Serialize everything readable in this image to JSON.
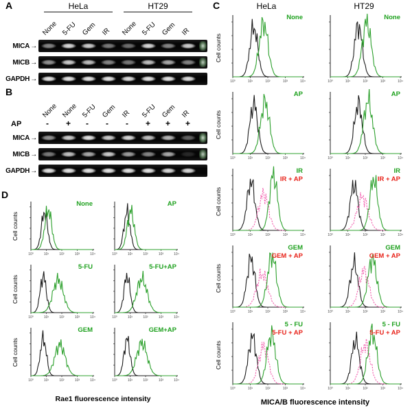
{
  "figure": {
    "panel_a": {
      "letter": "A",
      "group_headers": [
        "HeLa",
        "HT29"
      ],
      "lanes": [
        "None",
        "5-FU",
        "Gem",
        "IR",
        "None",
        "5-FU",
        "Gem",
        "IR"
      ],
      "rows": [
        {
          "label": "MICA",
          "arrow": "→",
          "bands": [
            0.55,
            0.9,
            0.85,
            0.5,
            0.45,
            0.9,
            0.55,
            0.85
          ],
          "marker": 0.9
        },
        {
          "label": "MICB",
          "arrow": "→",
          "bands": [
            0.6,
            0.85,
            0.8,
            0.55,
            0.5,
            0.8,
            0.7,
            0.55
          ],
          "marker": 0.85
        },
        {
          "label": "GAPDH",
          "arrow": "→",
          "bands": [
            0.95,
            0.95,
            0.95,
            0.95,
            0.92,
            0.95,
            0.95,
            0.92
          ],
          "marker": 0
        }
      ]
    },
    "panel_b": {
      "letter": "B",
      "ap_row_label": "AP",
      "lanes": [
        "None",
        "None",
        "5-FU",
        "Gem",
        "IR",
        "5-FU",
        "Gem",
        "IR"
      ],
      "ap_signs": [
        "-",
        "+",
        "-",
        "-",
        "-",
        "+",
        "+",
        "+"
      ],
      "rows": [
        {
          "label": "MICA",
          "arrow": "→",
          "bands": [
            0.6,
            0.85,
            0.95,
            0.85,
            0.9,
            0.8,
            0.75,
            0.4
          ],
          "marker": 0.9
        },
        {
          "label": "MICB",
          "arrow": "→",
          "bands": [
            0.5,
            0.8,
            0.7,
            0.85,
            0.65,
            0.55,
            0.7,
            0.15
          ],
          "marker": 0.85
        },
        {
          "label": "GAPDH",
          "arrow": "→",
          "bands": [
            0.95,
            0.95,
            0.95,
            0.95,
            0.95,
            0.95,
            0.9,
            0.9
          ],
          "marker": 0
        }
      ]
    },
    "panel_c": {
      "letter": "C",
      "col_headers": [
        "HeLa",
        "HT29"
      ],
      "ylabel": "Cell counts",
      "xlabel": "MICA/B fluorescence intensity"
    },
    "panel_d": {
      "letter": "D",
      "ylabel": "Cell counts",
      "xlabel": "Rae1 fluorescence intensity"
    }
  },
  "colors": {
    "green": "#1fa11f",
    "red": "#e8231a",
    "magenta": "#f25fae",
    "black": "#1a1a1a"
  },
  "chart_data": {
    "type": "line",
    "subtype": "flow-cytometry-histograms",
    "x_scale": "log10 fluorescence, 10^0 to 10^4",
    "x_ticks": [
      "10⁰",
      "10¹",
      "10²",
      "10³",
      "10⁴"
    ],
    "ylabel": "Cell counts",
    "plots": [
      {
        "id": "c-hela-none",
        "panel": "C",
        "cell_line": "HeLa",
        "treatment": "None",
        "labels": [
          {
            "text": "None",
            "color": "#1fa11f"
          }
        ],
        "curves": [
          {
            "name": "control",
            "color": "#1a1a1a",
            "peak": 0.3,
            "width": 0.08,
            "height": 0.82,
            "dashed": false
          },
          {
            "name": "stained",
            "color": "#2ca02c",
            "peak": 0.44,
            "width": 0.09,
            "height": 0.88,
            "dashed": false
          }
        ]
      },
      {
        "id": "c-ht29-none",
        "panel": "C",
        "cell_line": "HT29",
        "treatment": "None",
        "labels": [
          {
            "text": "None",
            "color": "#1fa11f"
          }
        ],
        "curves": [
          {
            "name": "control",
            "color": "#1a1a1a",
            "peak": 0.4,
            "width": 0.08,
            "height": 0.85,
            "dashed": false
          },
          {
            "name": "stained",
            "color": "#2ca02c",
            "peak": 0.52,
            "width": 0.09,
            "height": 0.9,
            "dashed": false
          }
        ]
      },
      {
        "id": "c-hela-ap",
        "panel": "C",
        "cell_line": "HeLa",
        "treatment": "AP",
        "labels": [
          {
            "text": "AP",
            "color": "#1fa11f"
          }
        ],
        "curves": [
          {
            "name": "control",
            "color": "#1a1a1a",
            "peak": 0.3,
            "width": 0.08,
            "height": 0.82,
            "dashed": false
          },
          {
            "name": "stained",
            "color": "#2ca02c",
            "peak": 0.46,
            "width": 0.09,
            "height": 0.85,
            "dashed": false
          }
        ]
      },
      {
        "id": "c-ht29-ap",
        "panel": "C",
        "cell_line": "HT29",
        "treatment": "AP",
        "labels": [
          {
            "text": "AP",
            "color": "#1fa11f"
          }
        ],
        "curves": [
          {
            "name": "control",
            "color": "#1a1a1a",
            "peak": 0.4,
            "width": 0.08,
            "height": 0.82,
            "dashed": false
          },
          {
            "name": "stained",
            "color": "#2ca02c",
            "peak": 0.54,
            "width": 0.09,
            "height": 0.88,
            "dashed": false
          }
        ]
      },
      {
        "id": "c-hela-ir",
        "panel": "C",
        "cell_line": "HeLa",
        "treatment": "IR",
        "labels": [
          {
            "text": "IR",
            "color": "#1fa11f"
          },
          {
            "text": "IR + AP",
            "color": "#e8231a"
          }
        ],
        "curves": [
          {
            "name": "control",
            "color": "#1a1a1a",
            "peak": 0.26,
            "width": 0.08,
            "height": 0.8,
            "dashed": false
          },
          {
            "name": "treatment + AP",
            "color": "#f25fae",
            "peak": 0.44,
            "width": 0.1,
            "height": 0.6,
            "dashed": true
          },
          {
            "name": "treatment",
            "color": "#2ca02c",
            "peak": 0.58,
            "width": 0.08,
            "height": 0.92,
            "dashed": false
          }
        ]
      },
      {
        "id": "c-ht29-ir",
        "panel": "C",
        "cell_line": "HT29",
        "treatment": "IR",
        "labels": [
          {
            "text": "IR",
            "color": "#1fa11f"
          },
          {
            "text": "IR + AP",
            "color": "#e8231a"
          }
        ],
        "curves": [
          {
            "name": "control",
            "color": "#1a1a1a",
            "peak": 0.34,
            "width": 0.08,
            "height": 0.75,
            "dashed": false
          },
          {
            "name": "treatment + AP",
            "color": "#f25fae",
            "peak": 0.46,
            "width": 0.11,
            "height": 0.55,
            "dashed": true
          },
          {
            "name": "treatment",
            "color": "#2ca02c",
            "peak": 0.62,
            "width": 0.08,
            "height": 0.85,
            "dashed": false
          }
        ]
      },
      {
        "id": "c-hela-gem",
        "panel": "C",
        "cell_line": "HeLa",
        "treatment": "GEM",
        "labels": [
          {
            "text": "GEM",
            "color": "#1fa11f"
          },
          {
            "text": "GEM + AP",
            "color": "#e8231a"
          }
        ],
        "curves": [
          {
            "name": "control",
            "color": "#1a1a1a",
            "peak": 0.26,
            "width": 0.08,
            "height": 0.8,
            "dashed": false
          },
          {
            "name": "treatment + AP",
            "color": "#f25fae",
            "peak": 0.42,
            "width": 0.11,
            "height": 0.55,
            "dashed": true
          },
          {
            "name": "treatment",
            "color": "#2ca02c",
            "peak": 0.56,
            "width": 0.09,
            "height": 0.85,
            "dashed": false
          }
        ]
      },
      {
        "id": "c-ht29-gem",
        "panel": "C",
        "cell_line": "HT29",
        "treatment": "GEM",
        "labels": [
          {
            "text": "GEM",
            "color": "#1fa11f"
          },
          {
            "text": "GEM + AP",
            "color": "#e8231a"
          }
        ],
        "curves": [
          {
            "name": "control",
            "color": "#1a1a1a",
            "peak": 0.34,
            "width": 0.08,
            "height": 0.72,
            "dashed": false
          },
          {
            "name": "treatment + AP",
            "color": "#f25fae",
            "peak": 0.48,
            "width": 0.1,
            "height": 0.6,
            "dashed": true
          },
          {
            "name": "treatment",
            "color": "#2ca02c",
            "peak": 0.6,
            "width": 0.09,
            "height": 0.8,
            "dashed": false
          }
        ]
      },
      {
        "id": "c-hela-5fu",
        "panel": "C",
        "cell_line": "HeLa",
        "treatment": "5-FU",
        "labels": [
          {
            "text": "5 - FU",
            "color": "#1fa11f"
          },
          {
            "text": "5-FU + AP",
            "color": "#e8231a"
          }
        ],
        "curves": [
          {
            "name": "control",
            "color": "#1a1a1a",
            "peak": 0.28,
            "width": 0.08,
            "height": 0.78,
            "dashed": false
          },
          {
            "name": "treatment + AP",
            "color": "#f25fae",
            "peak": 0.44,
            "width": 0.1,
            "height": 0.62,
            "dashed": true
          },
          {
            "name": "treatment",
            "color": "#2ca02c",
            "peak": 0.55,
            "width": 0.09,
            "height": 0.82,
            "dashed": false
          }
        ]
      },
      {
        "id": "c-ht29-5fu",
        "panel": "C",
        "cell_line": "HT29",
        "treatment": "5-FU",
        "labels": [
          {
            "text": "5 - FU",
            "color": "#1fa11f"
          },
          {
            "text": "5-FU + AP",
            "color": "#e8231a"
          }
        ],
        "curves": [
          {
            "name": "control",
            "color": "#1a1a1a",
            "peak": 0.36,
            "width": 0.08,
            "height": 0.72,
            "dashed": false
          },
          {
            "name": "treatment + AP",
            "color": "#f25fae",
            "peak": 0.5,
            "width": 0.1,
            "height": 0.65,
            "dashed": true
          },
          {
            "name": "treatment",
            "color": "#2ca02c",
            "peak": 0.6,
            "width": 0.09,
            "height": 0.85,
            "dashed": false
          }
        ]
      },
      {
        "id": "d-none",
        "panel": "D",
        "treatment": "None",
        "labels": [
          {
            "text": "None",
            "color": "#1fa11f"
          }
        ],
        "curves": [
          {
            "name": "control",
            "color": "#1a1a1a",
            "peak": 0.22,
            "width": 0.07,
            "height": 0.8,
            "dashed": false
          },
          {
            "name": "stained",
            "color": "#2ca02c",
            "peak": 0.28,
            "width": 0.08,
            "height": 0.85,
            "dashed": false
          }
        ]
      },
      {
        "id": "d-ap",
        "panel": "D",
        "treatment": "AP",
        "labels": [
          {
            "text": "AP",
            "color": "#1fa11f"
          }
        ],
        "curves": [
          {
            "name": "control",
            "color": "#1a1a1a",
            "peak": 0.2,
            "width": 0.07,
            "height": 0.8,
            "dashed": false
          },
          {
            "name": "stained",
            "color": "#2ca02c",
            "peak": 0.26,
            "width": 0.08,
            "height": 0.82,
            "dashed": false
          }
        ]
      },
      {
        "id": "d-5fu",
        "panel": "D",
        "treatment": "5-FU",
        "labels": [
          {
            "text": "5-FU",
            "color": "#1fa11f"
          }
        ],
        "curves": [
          {
            "name": "control",
            "color": "#1a1a1a",
            "peak": 0.2,
            "width": 0.07,
            "height": 0.78,
            "dashed": false
          },
          {
            "name": "stained",
            "color": "#2ca02c",
            "peak": 0.44,
            "width": 0.12,
            "height": 0.7,
            "dashed": false
          }
        ]
      },
      {
        "id": "d-5fu-ap",
        "panel": "D",
        "treatment": "5-FU+AP",
        "labels": [
          {
            "text": "5-FU+AP",
            "color": "#1fa11f"
          }
        ],
        "curves": [
          {
            "name": "control",
            "color": "#1a1a1a",
            "peak": 0.2,
            "width": 0.07,
            "height": 0.78,
            "dashed": false
          },
          {
            "name": "stained",
            "color": "#2ca02c",
            "peak": 0.44,
            "width": 0.12,
            "height": 0.72,
            "dashed": false
          }
        ]
      },
      {
        "id": "d-gem",
        "panel": "D",
        "treatment": "GEM",
        "labels": [
          {
            "text": "GEM",
            "color": "#1fa11f"
          }
        ],
        "curves": [
          {
            "name": "control",
            "color": "#1a1a1a",
            "peak": 0.2,
            "width": 0.07,
            "height": 0.8,
            "dashed": false
          },
          {
            "name": "stained",
            "color": "#2ca02c",
            "peak": 0.47,
            "width": 0.12,
            "height": 0.66,
            "dashed": false
          }
        ]
      },
      {
        "id": "d-gem-ap",
        "panel": "D",
        "treatment": "GEM+AP",
        "labels": [
          {
            "text": "GEM+AP",
            "color": "#1fa11f"
          }
        ],
        "curves": [
          {
            "name": "control",
            "color": "#1a1a1a",
            "peak": 0.2,
            "width": 0.07,
            "height": 0.78,
            "dashed": false
          },
          {
            "name": "stained",
            "color": "#2ca02c",
            "peak": 0.44,
            "width": 0.12,
            "height": 0.7,
            "dashed": false
          }
        ]
      }
    ]
  }
}
